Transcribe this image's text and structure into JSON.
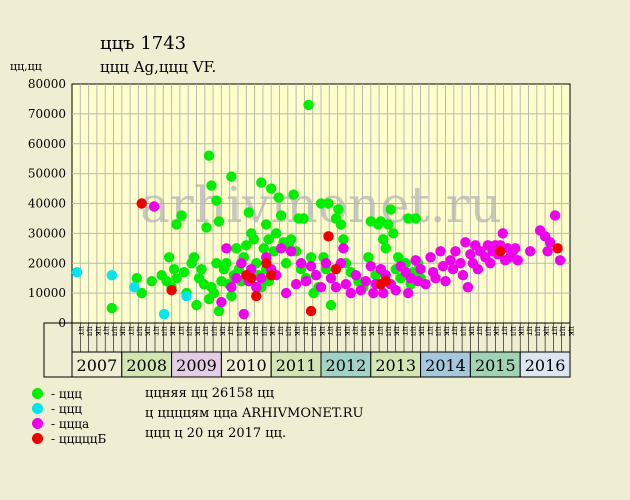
{
  "title": "ццъ 1743",
  "subtitle": "ццц Ag,ццц VF.",
  "y_unit": "цц,цц",
  "watermark": "arhivmonet.ru",
  "legend": [
    {
      "label": "- ццц",
      "color": "#00ee00"
    },
    {
      "label": "- ццц",
      "color": "#00e5ee"
    },
    {
      "label": "- ццца",
      "color": "#ee00ee"
    },
    {
      "label": "- цццццБ",
      "color": "#ee0000"
    }
  ],
  "info": [
    "ццняя цц 26158 цц",
    "ц ццццям цца ARHIVMONET.RU",
    "ццц ц 20 ця 2017 цц."
  ],
  "colors": {
    "plot_bg": "#ffffcc",
    "grid": "#b8b8b8",
    "green": "#00ee00",
    "cyan": "#00e5ee",
    "magenta": "#ee00ee",
    "red": "#ee0000"
  },
  "chart_data": {
    "type": "scatter",
    "ylim": [
      0,
      80000
    ],
    "yticks": [
      "0",
      "10000",
      "20000",
      "30000",
      "40000",
      "50000",
      "60000",
      "70000",
      "80000"
    ],
    "xlim": [
      2007,
      2017
    ],
    "month_labels": [
      "цт",
      "цл",
      "цк"
    ],
    "year_labels": [
      "2007",
      "2008",
      "2009",
      "2010",
      "2011",
      "2012",
      "2013",
      "2014",
      "2015",
      "2016"
    ],
    "year_colors": [
      "#f0eed2",
      "#d2e6b4",
      "#e6cde6",
      "#f0eed2",
      "#d2e6b4",
      "#a0d2c8",
      "#d2e6b4",
      "#a5c8dc",
      "#a0d2b4",
      "#dce6f0"
    ],
    "series": [
      {
        "name": "ццц",
        "color": "#00ee00",
        "points": [
          [
            2007.8,
            5000
          ],
          [
            2008.3,
            15000
          ],
          [
            2008.4,
            10000
          ],
          [
            2008.6,
            14000
          ],
          [
            2008.8,
            16000
          ],
          [
            2008.9,
            14000
          ],
          [
            2008.95,
            22000
          ],
          [
            2009.0,
            12000
          ],
          [
            2009.05,
            18000
          ],
          [
            2009.1,
            15000
          ],
          [
            2009.1,
            33000
          ],
          [
            2009.2,
            36000
          ],
          [
            2009.25,
            17000
          ],
          [
            2009.3,
            10000
          ],
          [
            2009.4,
            20000
          ],
          [
            2009.45,
            22000
          ],
          [
            2009.5,
            6000
          ],
          [
            2009.55,
            15000
          ],
          [
            2009.6,
            18000
          ],
          [
            2009.65,
            13000
          ],
          [
            2009.7,
            32000
          ],
          [
            2009.75,
            8000
          ],
          [
            2009.8,
            12000
          ],
          [
            2009.85,
            10000
          ],
          [
            2009.9,
            20000
          ],
          [
            2009.95,
            4000
          ],
          [
            2009.95,
            34000
          ],
          [
            2010.0,
            14000
          ],
          [
            2010.05,
            18000
          ],
          [
            2009.75,
            56000
          ],
          [
            2009.8,
            46000
          ],
          [
            2009.9,
            41000
          ],
          [
            2010.1,
            20000
          ],
          [
            2010.15,
            13000
          ],
          [
            2010.2,
            9000
          ],
          [
            2010.25,
            16000
          ],
          [
            2010.3,
            25000
          ],
          [
            2010.35,
            18000
          ],
          [
            2010.4,
            14000
          ],
          [
            2010.45,
            22000
          ],
          [
            2010.5,
            26000
          ],
          [
            2010.55,
            37000
          ],
          [
            2010.6,
            30000
          ],
          [
            2010.65,
            28000
          ],
          [
            2010.7,
            20000
          ],
          [
            2010.75,
            16000
          ],
          [
            2010.8,
            12000
          ],
          [
            2010.85,
            25000
          ],
          [
            2010.9,
            18000
          ],
          [
            2010.95,
            14000
          ],
          [
            2010.2,
            49000
          ],
          [
            2010.8,
            47000
          ],
          [
            2010.9,
            33000
          ],
          [
            2010.95,
            28000
          ],
          [
            2011.0,
            45000
          ],
          [
            2011.05,
            24000
          ],
          [
            2011.1,
            30000
          ],
          [
            2011.15,
            42000
          ],
          [
            2011.2,
            36000
          ],
          [
            2011.25,
            27000
          ],
          [
            2011.3,
            20000
          ],
          [
            2011.35,
            26000
          ],
          [
            2011.4,
            28000
          ],
          [
            2011.45,
            43000
          ],
          [
            2011.5,
            24000
          ],
          [
            2011.55,
            35000
          ],
          [
            2011.6,
            18000
          ],
          [
            2011.65,
            35000
          ],
          [
            2011.7,
            15000
          ],
          [
            2011.75,
            73000
          ],
          [
            2011.8,
            22000
          ],
          [
            2011.85,
            10000
          ],
          [
            2011.9,
            16000
          ],
          [
            2011.95,
            12000
          ],
          [
            2012.0,
            40000
          ],
          [
            2012.05,
            22000
          ],
          [
            2012.1,
            18000
          ],
          [
            2012.15,
            40000
          ],
          [
            2012.2,
            6000
          ],
          [
            2012.3,
            35000
          ],
          [
            2012.35,
            38000
          ],
          [
            2012.4,
            33000
          ],
          [
            2012.45,
            28000
          ],
          [
            2012.5,
            20000
          ],
          [
            2012.6,
            17000
          ],
          [
            2012.75,
            14000
          ],
          [
            2012.85,
            12000
          ],
          [
            2012.95,
            22000
          ],
          [
            2013.0,
            34000
          ],
          [
            2013.1,
            16000
          ],
          [
            2013.15,
            33000
          ],
          [
            2013.2,
            34000
          ],
          [
            2013.25,
            28000
          ],
          [
            2013.3,
            25000
          ],
          [
            2013.35,
            33000
          ],
          [
            2013.4,
            38000
          ],
          [
            2013.45,
            30000
          ],
          [
            2013.5,
            18000
          ],
          [
            2013.55,
            22000
          ],
          [
            2013.6,
            15000
          ],
          [
            2013.7,
            20000
          ],
          [
            2013.75,
            35000
          ],
          [
            2013.8,
            13000
          ],
          [
            2013.85,
            17000
          ],
          [
            2013.9,
            35000
          ],
          [
            2013.95,
            20000
          ],
          [
            2014.0,
            15000
          ]
        ]
      },
      {
        "name": "ццц",
        "color": "#00e5ee",
        "points": [
          [
            2007.1,
            17000
          ],
          [
            2007.8,
            16000
          ],
          [
            2008.25,
            12000
          ],
          [
            2008.85,
            3000
          ],
          [
            2009.3,
            9000
          ]
        ]
      },
      {
        "name": "ццца",
        "color": "#ee00ee",
        "points": [
          [
            2008.65,
            39000
          ],
          [
            2010.0,
            7000
          ],
          [
            2010.1,
            25000
          ],
          [
            2010.2,
            12000
          ],
          [
            2010.3,
            15000
          ],
          [
            2010.4,
            20000
          ],
          [
            2010.45,
            3000
          ],
          [
            2010.55,
            14000
          ],
          [
            2010.6,
            18000
          ],
          [
            2010.7,
            12000
          ],
          [
            2010.8,
            15000
          ],
          [
            2010.9,
            22000
          ],
          [
            2011.0,
            18000
          ],
          [
            2011.1,
            16000
          ],
          [
            2011.2,
            25000
          ],
          [
            2011.3,
            10000
          ],
          [
            2011.4,
            24000
          ],
          [
            2011.5,
            13000
          ],
          [
            2011.6,
            20000
          ],
          [
            2011.7,
            14000
          ],
          [
            2011.8,
            19000
          ],
          [
            2011.9,
            16000
          ],
          [
            2012.0,
            12000
          ],
          [
            2012.1,
            20000
          ],
          [
            2012.2,
            15000
          ],
          [
            2012.3,
            12000
          ],
          [
            2012.4,
            20000
          ],
          [
            2012.45,
            25000
          ],
          [
            2012.5,
            13000
          ],
          [
            2012.6,
            10000
          ],
          [
            2012.7,
            16000
          ],
          [
            2012.8,
            11000
          ],
          [
            2012.9,
            14000
          ],
          [
            2013.0,
            19000
          ],
          [
            2013.05,
            10000
          ],
          [
            2013.1,
            13000
          ],
          [
            2013.2,
            18000
          ],
          [
            2013.25,
            10000
          ],
          [
            2013.3,
            16000
          ],
          [
            2013.4,
            13000
          ],
          [
            2013.5,
            11000
          ],
          [
            2013.6,
            19000
          ],
          [
            2013.7,
            17000
          ],
          [
            2013.75,
            10000
          ],
          [
            2013.8,
            15000
          ],
          [
            2013.9,
            21000
          ],
          [
            2013.95,
            14000
          ],
          [
            2014.0,
            18000
          ],
          [
            2014.1,
            13000
          ],
          [
            2014.2,
            22000
          ],
          [
            2014.25,
            17000
          ],
          [
            2014.3,
            15000
          ],
          [
            2014.4,
            24000
          ],
          [
            2014.45,
            19000
          ],
          [
            2014.5,
            14000
          ],
          [
            2014.6,
            21000
          ],
          [
            2014.65,
            18000
          ],
          [
            2014.7,
            24000
          ],
          [
            2014.8,
            20000
          ],
          [
            2014.85,
            16000
          ],
          [
            2014.9,
            27000
          ],
          [
            2014.95,
            12000
          ],
          [
            2015.0,
            23000
          ],
          [
            2015.05,
            20000
          ],
          [
            2015.1,
            26000
          ],
          [
            2015.15,
            18000
          ],
          [
            2015.2,
            24000
          ],
          [
            2015.3,
            22000
          ],
          [
            2015.35,
            26000
          ],
          [
            2015.4,
            20000
          ],
          [
            2015.45,
            24000
          ],
          [
            2015.5,
            26000
          ],
          [
            2015.55,
            23000
          ],
          [
            2015.6,
            26000
          ],
          [
            2015.65,
            30000
          ],
          [
            2015.7,
            21000
          ],
          [
            2015.75,
            25000
          ],
          [
            2015.8,
            22000
          ],
          [
            2015.85,
            24000
          ],
          [
            2015.9,
            25000
          ],
          [
            2015.95,
            21000
          ],
          [
            2016.2,
            24000
          ],
          [
            2016.4,
            31000
          ],
          [
            2016.5,
            29000
          ],
          [
            2016.55,
            24000
          ],
          [
            2016.6,
            27000
          ],
          [
            2016.7,
            36000
          ],
          [
            2016.8,
            21000
          ]
        ]
      },
      {
        "name": "цццццБ",
        "color": "#ee0000",
        "points": [
          [
            2008.4,
            40000
          ],
          [
            2009.0,
            11000
          ],
          [
            2010.5,
            16000
          ],
          [
            2010.6,
            15000
          ],
          [
            2010.7,
            9000
          ],
          [
            2010.9,
            20000
          ],
          [
            2011.0,
            16000
          ],
          [
            2011.8,
            4000
          ],
          [
            2012.15,
            29000
          ],
          [
            2012.3,
            18000
          ],
          [
            2013.2,
            13000
          ],
          [
            2013.3,
            14000
          ],
          [
            2015.6,
            24000
          ],
          [
            2016.75,
            25000
          ]
        ]
      }
    ]
  }
}
